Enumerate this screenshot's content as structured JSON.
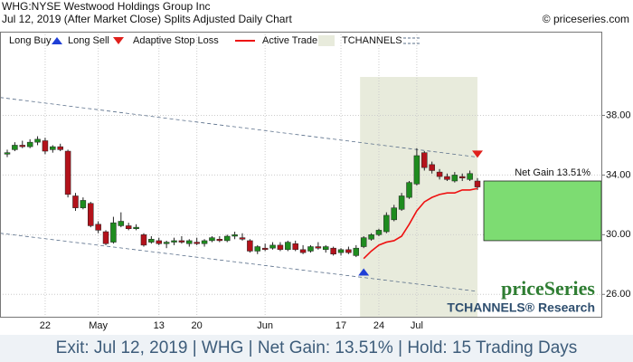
{
  "chart_data": {
    "type": "candlestick",
    "title": "WHG:NYSE Westwood Holdings Group Inc",
    "subtitle": "Jul 12, 2019 (After Market Close)  Splits Adjusted Daily Chart",
    "source": "© priceseries.com",
    "footer": "Exit: Jul 12, 2019 | WHG | Net Gain: 13.51% | Hold: 15 Trading Days",
    "watermark": "priceSeries",
    "watermark_sub": "TCHANNELS® Research",
    "gain_label": "Net Gain 13.51%",
    "gain_box": {
      "from": 29.6,
      "to": 33.6,
      "color": "#7ddc72"
    },
    "categories": [
      null,
      null,
      null,
      null,
      null,
      "22",
      null,
      null,
      null,
      null,
      null,
      null,
      "May",
      null,
      null,
      null,
      null,
      null,
      null,
      null,
      "13",
      null,
      null,
      null,
      null,
      "20",
      null,
      null,
      null,
      null,
      null,
      null,
      null,
      null,
      "Jun",
      null,
      null,
      null,
      null,
      null,
      null,
      null,
      null,
      null,
      "17",
      null,
      null,
      null,
      null,
      "24",
      null,
      null,
      null,
      null,
      "Jul",
      null,
      null,
      null,
      null,
      null,
      null,
      null,
      null
    ],
    "open": [
      35.4,
      35.7,
      36.0,
      35.9,
      36.2,
      36.3,
      35.7,
      35.9,
      35.6,
      32.6,
      31.8,
      32.1,
      30.7,
      30.2,
      29.5,
      30.6,
      30.6,
      30.4,
      30.0,
      29.5,
      29.6,
      29.4,
      29.5,
      29.6,
      29.4,
      29.5,
      29.4,
      29.6,
      29.7,
      29.6,
      29.9,
      29.8,
      29.6,
      28.9,
      29.1,
      29.1,
      29.3,
      29.0,
      29.4,
      29.0,
      28.9,
      29.2,
      29.0,
      29.1,
      28.8,
      29.0,
      28.6,
      29.2,
      29.7,
      30.0,
      30.2,
      31.0,
      31.7,
      32.5,
      33.4,
      35.5,
      34.7,
      34.2,
      33.9,
      33.6,
      33.9,
      33.7,
      33.6
    ],
    "high": [
      35.7,
      36.2,
      36.3,
      36.4,
      36.6,
      36.5,
      36.0,
      36.1,
      35.7,
      32.8,
      32.5,
      32.2,
      30.9,
      30.3,
      31.2,
      31.5,
      30.8,
      30.7,
      30.1,
      29.9,
      29.8,
      29.6,
      29.8,
      29.9,
      29.7,
      29.8,
      29.7,
      29.9,
      29.9,
      30.0,
      30.2,
      30.1,
      29.7,
      29.3,
      29.4,
      29.5,
      29.5,
      29.6,
      29.6,
      29.3,
      29.3,
      29.5,
      29.3,
      29.2,
      29.1,
      29.2,
      29.3,
      29.9,
      30.1,
      30.4,
      31.5,
      32.0,
      32.8,
      33.6,
      35.8,
      35.6,
      34.9,
      34.4,
      34.1,
      34.2,
      34.1,
      34.3,
      33.8
    ],
    "low": [
      35.2,
      35.6,
      35.8,
      35.8,
      36.0,
      35.4,
      35.5,
      35.6,
      32.5,
      31.6,
      31.7,
      30.5,
      30.1,
      29.3,
      29.4,
      30.5,
      30.3,
      30.3,
      29.2,
      29.4,
      29.3,
      29.1,
      29.3,
      29.4,
      29.2,
      29.3,
      29.2,
      29.5,
      29.5,
      29.5,
      29.7,
      29.6,
      28.8,
      28.7,
      28.9,
      29.0,
      28.9,
      28.9,
      28.9,
      28.7,
      28.8,
      29.0,
      28.8,
      28.6,
      28.6,
      28.7,
      28.5,
      29.1,
      29.6,
      29.9,
      30.1,
      30.9,
      31.6,
      32.4,
      33.3,
      34.3,
      34.1,
      33.7,
      33.6,
      33.5,
      33.6,
      33.6,
      33.0
    ],
    "close": [
      35.5,
      36.0,
      35.9,
      36.2,
      36.4,
      35.6,
      35.9,
      35.7,
      32.7,
      31.8,
      32.3,
      30.6,
      30.3,
      29.4,
      30.8,
      30.9,
      30.4,
      30.5,
      29.3,
      29.7,
      29.4,
      29.5,
      29.6,
      29.5,
      29.6,
      29.4,
      29.6,
      29.8,
      29.6,
      29.9,
      30.0,
      29.7,
      28.9,
      29.2,
      29.0,
      29.3,
      29.0,
      29.5,
      29.0,
      28.8,
      29.2,
      29.1,
      29.2,
      28.7,
      29.0,
      28.8,
      29.1,
      29.8,
      30.0,
      30.3,
      31.3,
      31.8,
      32.6,
      33.5,
      35.3,
      34.5,
      34.3,
      33.9,
      33.7,
      34.0,
      33.8,
      34.1,
      33.2
    ],
    "up_color": "#1e8c1e",
    "down_color": "#b3121b",
    "series": [
      {
        "name": "Long Buy",
        "color": "#1f3fd6",
        "values": [
          null,
          null,
          null,
          null,
          null,
          null,
          null,
          null,
          null,
          null,
          null,
          null,
          null,
          null,
          null,
          null,
          null,
          null,
          null,
          null,
          null,
          null,
          null,
          null,
          null,
          null,
          null,
          null,
          null,
          null,
          null,
          null,
          null,
          null,
          null,
          null,
          null,
          null,
          null,
          null,
          null,
          null,
          null,
          null,
          null,
          null,
          null,
          27.5,
          null,
          null,
          null,
          null,
          null,
          null,
          null,
          null,
          null,
          null,
          null,
          null,
          null,
          null,
          null
        ]
      },
      {
        "name": "Long Sell",
        "color": "#e0201c",
        "values": [
          null,
          null,
          null,
          null,
          null,
          null,
          null,
          null,
          null,
          null,
          null,
          null,
          null,
          null,
          null,
          null,
          null,
          null,
          null,
          null,
          null,
          null,
          null,
          null,
          null,
          null,
          null,
          null,
          null,
          null,
          null,
          null,
          null,
          null,
          null,
          null,
          null,
          null,
          null,
          null,
          null,
          null,
          null,
          null,
          null,
          null,
          null,
          null,
          null,
          null,
          null,
          null,
          null,
          null,
          null,
          null,
          null,
          null,
          null,
          null,
          null,
          null,
          35.4
        ]
      },
      {
        "name": "Adaptive Stop Loss",
        "color": "#ee1111",
        "values": [
          null,
          null,
          null,
          null,
          null,
          null,
          null,
          null,
          null,
          null,
          null,
          null,
          null,
          null,
          null,
          null,
          null,
          null,
          null,
          null,
          null,
          null,
          null,
          null,
          null,
          null,
          null,
          null,
          null,
          null,
          null,
          null,
          null,
          null,
          null,
          null,
          null,
          null,
          null,
          null,
          null,
          null,
          null,
          null,
          null,
          null,
          null,
          28.4,
          28.9,
          29.3,
          29.5,
          29.6,
          29.9,
          30.7,
          31.6,
          32.2,
          32.5,
          32.7,
          32.8,
          32.8,
          33.0,
          33.0,
          33.1
        ]
      }
    ],
    "active_trade": {
      "name": "Active Trade",
      "color": "#e8ebdc"
    },
    "channels": {
      "name": "TCHANNELS",
      "color": "#5a6f8a",
      "upper": [
        39.2,
        35.2
      ],
      "lower": [
        30.1,
        26.2
      ]
    },
    "ylim": [
      24.5,
      42.7
    ],
    "yticks": [
      {
        "value": 26,
        "label": "26.00"
      },
      {
        "value": 30,
        "label": "30.00"
      },
      {
        "value": 34,
        "label": "34.00"
      },
      {
        "value": 38,
        "label": "38.00"
      }
    ],
    "grid": true
  }
}
